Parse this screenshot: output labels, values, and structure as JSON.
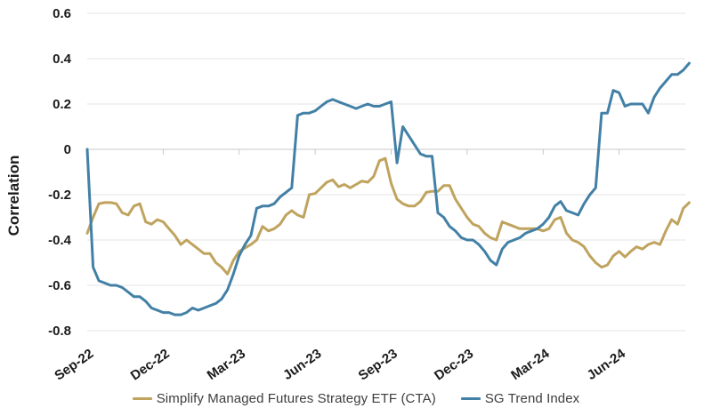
{
  "chart_data": {
    "type": "line",
    "title": "",
    "ylabel": "Correlation",
    "ylim": [
      -0.8,
      0.6
    ],
    "grid": "horizontal",
    "legend_position": "bottom",
    "ytick_values": [
      0.6,
      0.4,
      0.2,
      0,
      -0.2,
      -0.4,
      -0.6,
      -0.8
    ],
    "ytick_labels": [
      "0.6",
      "0.4",
      "0.2",
      "0",
      "-0.2",
      "-0.4",
      "-0.6",
      "-0.8"
    ],
    "x_tick_labels": [
      "Sep-22",
      "Dec-22",
      "Mar-23",
      "Jun-23",
      "Sep-23",
      "Dec-23",
      "Mar-24",
      "Jun-24"
    ],
    "x_tick_indices": [
      0,
      13,
      26,
      39,
      52,
      65,
      78,
      91
    ],
    "n_points": 104,
    "x_frequency": "weekly",
    "series": [
      {
        "name": "Simplify Managed Futures Strategy ETF (CTA)",
        "color": "#BFA35E",
        "values": [
          -0.37,
          -0.3,
          -0.24,
          -0.235,
          -0.235,
          -0.24,
          -0.28,
          -0.29,
          -0.25,
          -0.24,
          -0.32,
          -0.33,
          -0.31,
          -0.32,
          -0.35,
          -0.38,
          -0.42,
          -0.4,
          -0.42,
          -0.44,
          -0.46,
          -0.46,
          -0.5,
          -0.52,
          -0.55,
          -0.49,
          -0.45,
          -0.435,
          -0.42,
          -0.4,
          -0.34,
          -0.36,
          -0.35,
          -0.33,
          -0.29,
          -0.27,
          -0.29,
          -0.3,
          -0.2,
          -0.195,
          -0.17,
          -0.145,
          -0.135,
          -0.165,
          -0.155,
          -0.17,
          -0.155,
          -0.14,
          -0.145,
          -0.12,
          -0.05,
          -0.04,
          -0.15,
          -0.22,
          -0.24,
          -0.25,
          -0.25,
          -0.23,
          -0.19,
          -0.185,
          -0.185,
          -0.16,
          -0.16,
          -0.22,
          -0.26,
          -0.3,
          -0.33,
          -0.34,
          -0.37,
          -0.39,
          -0.4,
          -0.32,
          -0.33,
          -0.34,
          -0.35,
          -0.35,
          -0.35,
          -0.35,
          -0.36,
          -0.35,
          -0.31,
          -0.3,
          -0.37,
          -0.4,
          -0.41,
          -0.43,
          -0.47,
          -0.5,
          -0.52,
          -0.51,
          -0.47,
          -0.45,
          -0.475,
          -0.45,
          -0.43,
          -0.44,
          -0.42,
          -0.41,
          -0.42,
          -0.36,
          -0.31,
          -0.33,
          -0.26,
          -0.235
        ]
      },
      {
        "name": "SG Trend Index",
        "color": "#4280A6",
        "values": [
          0.0,
          -0.52,
          -0.58,
          -0.59,
          -0.6,
          -0.6,
          -0.61,
          -0.63,
          -0.65,
          -0.65,
          -0.67,
          -0.7,
          -0.71,
          -0.72,
          -0.72,
          -0.73,
          -0.73,
          -0.72,
          -0.7,
          -0.71,
          -0.7,
          -0.69,
          -0.68,
          -0.66,
          -0.62,
          -0.55,
          -0.47,
          -0.42,
          -0.38,
          -0.26,
          -0.25,
          -0.25,
          -0.24,
          -0.21,
          -0.19,
          -0.17,
          0.15,
          0.16,
          0.16,
          0.17,
          0.19,
          0.21,
          0.22,
          0.21,
          0.2,
          0.19,
          0.18,
          0.19,
          0.2,
          0.19,
          0.19,
          0.2,
          0.21,
          -0.06,
          0.1,
          0.06,
          0.02,
          -0.02,
          -0.03,
          -0.03,
          -0.28,
          -0.3,
          -0.34,
          -0.36,
          -0.39,
          -0.4,
          -0.4,
          -0.42,
          -0.45,
          -0.49,
          -0.51,
          -0.44,
          -0.41,
          -0.4,
          -0.39,
          -0.37,
          -0.36,
          -0.35,
          -0.33,
          -0.3,
          -0.25,
          -0.23,
          -0.27,
          -0.28,
          -0.29,
          -0.24,
          -0.2,
          -0.17,
          0.16,
          0.16,
          0.26,
          0.25,
          0.19,
          0.2,
          0.2,
          0.2,
          0.16,
          0.23,
          0.27,
          0.3,
          0.33,
          0.33,
          0.35,
          0.38
        ]
      }
    ],
    "colors": {
      "gridline": "#E3E3E3",
      "zero_axis": "#C8C8C8",
      "axis_text": "#1a1a1a",
      "legend_text": "#3d3d3d",
      "background": "#ffffff"
    }
  }
}
